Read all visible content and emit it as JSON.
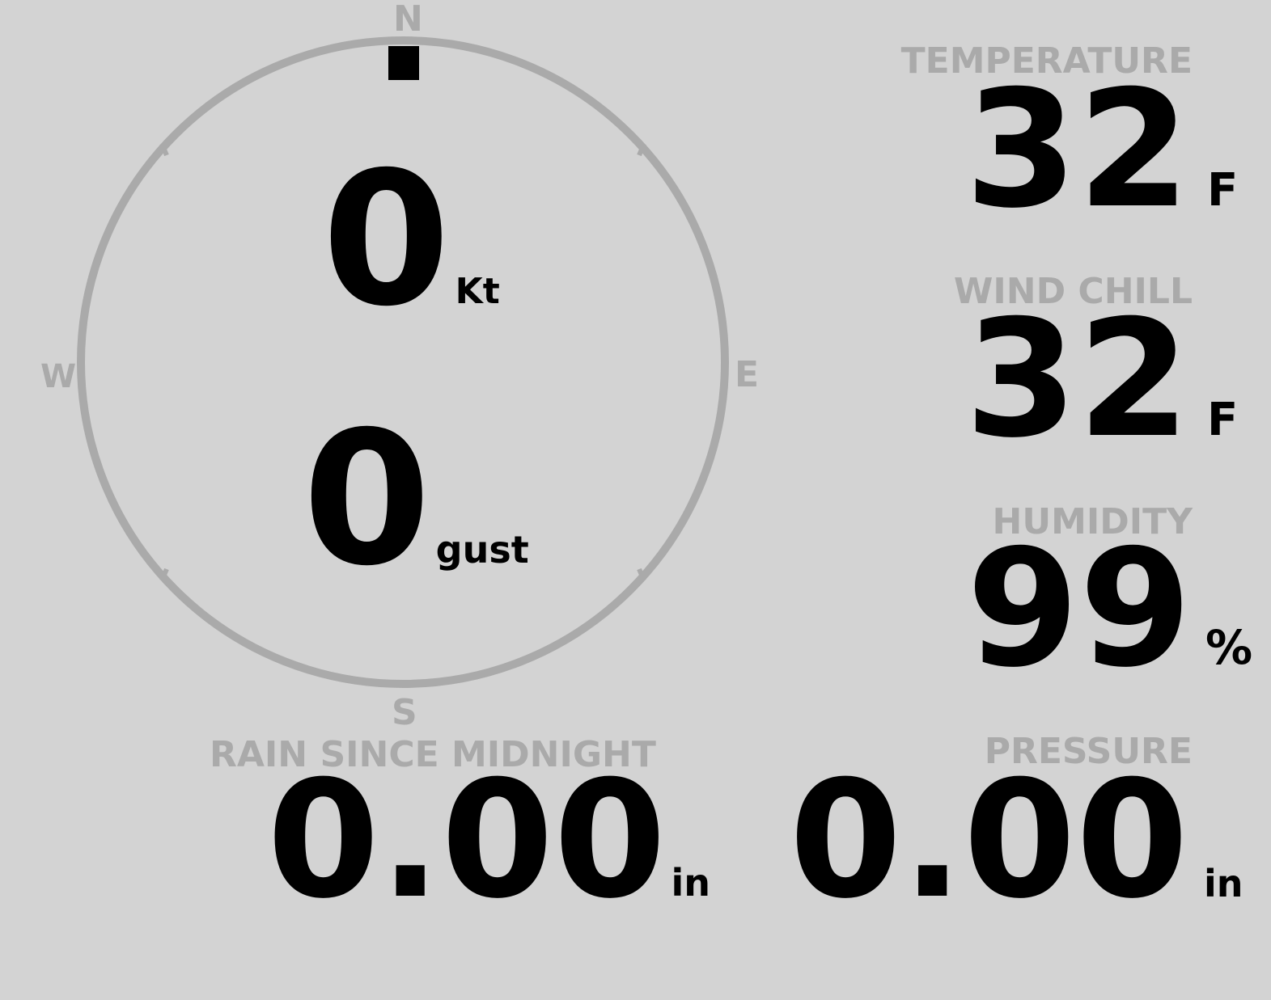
{
  "compass": {
    "north": "N",
    "south": "S",
    "east": "E",
    "west": "W",
    "direction_deg": 0,
    "ring_color": "#aaaaaa",
    "indicator_color": "#000000"
  },
  "wind": {
    "speed": "0",
    "speed_unit": "Kt",
    "gust": "0",
    "gust_unit": "gust"
  },
  "temperature": {
    "label": "TEMPERATURE",
    "value": "32",
    "unit": "F"
  },
  "wind_chill": {
    "label": "WIND CHILL",
    "value": "32",
    "unit": "F"
  },
  "humidity": {
    "label": "HUMIDITY",
    "value": "99",
    "unit": "%"
  },
  "rain": {
    "label": "RAIN SINCE MIDNIGHT",
    "value": "0.00",
    "unit": "in"
  },
  "pressure": {
    "label": "PRESSURE",
    "value": "0.00",
    "unit": "in"
  }
}
